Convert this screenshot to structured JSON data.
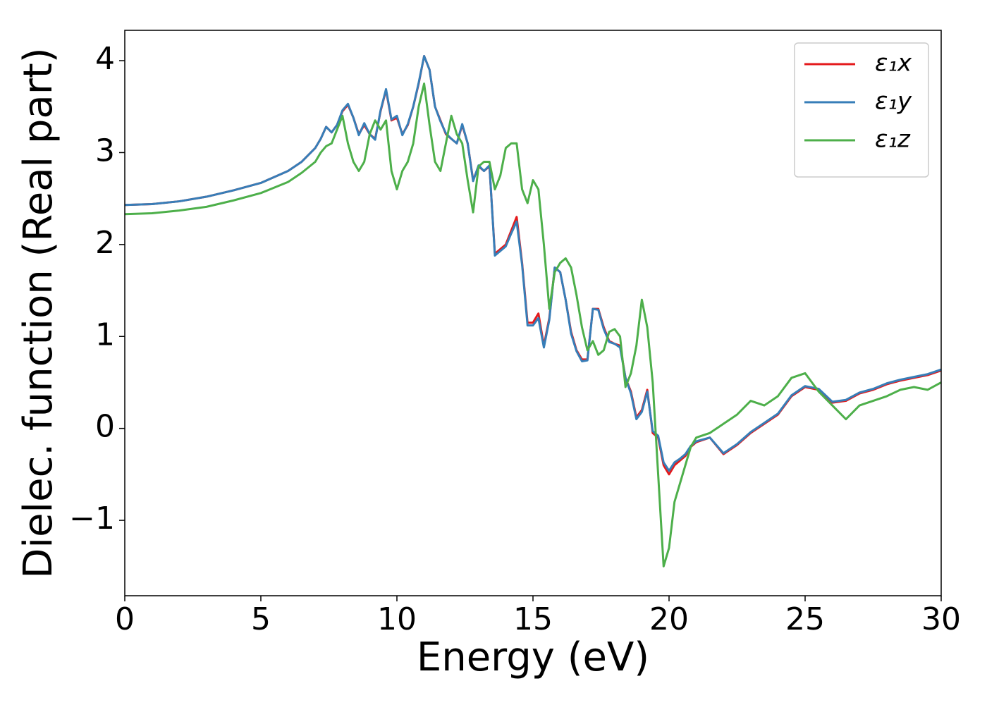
{
  "chart_data": {
    "type": "line",
    "xlabel": "Energy (eV)",
    "ylabel": "Dielec. function (Real part)",
    "xlim": [
      0,
      30
    ],
    "ylim": [
      -1.82,
      4.33
    ],
    "xticks": [
      0,
      5,
      10,
      15,
      20,
      25,
      30
    ],
    "yticks": [
      {
        "value": -1,
        "label": "−1"
      },
      0,
      1,
      2,
      3,
      4
    ],
    "grid": false,
    "legend": "upper right",
    "x": [
      0,
      1,
      2,
      3,
      4,
      5,
      6,
      6.5,
      7,
      7.2,
      7.4,
      7.6,
      7.8,
      8,
      8.2,
      8.4,
      8.6,
      8.8,
      9,
      9.2,
      9.4,
      9.6,
      9.8,
      10,
      10.2,
      10.4,
      10.6,
      10.8,
      11,
      11.2,
      11.4,
      11.6,
      11.8,
      12,
      12.2,
      12.4,
      12.6,
      12.8,
      13,
      13.2,
      13.4,
      13.6,
      13.8,
      14,
      14.2,
      14.4,
      14.6,
      14.8,
      15,
      15.2,
      15.4,
      15.6,
      15.8,
      16,
      16.2,
      16.4,
      16.6,
      16.8,
      17,
      17.2,
      17.4,
      17.6,
      17.8,
      18,
      18.2,
      18.4,
      18.6,
      18.8,
      19,
      19.2,
      19.4,
      19.6,
      19.8,
      20,
      20.2,
      20.4,
      20.6,
      20.8,
      21,
      21.5,
      22,
      22.5,
      23,
      23.5,
      24,
      24.5,
      25,
      25.5,
      26,
      26.5,
      27,
      27.5,
      28,
      28.5,
      29,
      29.5,
      30
    ],
    "series": [
      {
        "name": "ε₁x",
        "color": "#e41a1c",
        "values": [
          2.43,
          2.44,
          2.47,
          2.52,
          2.59,
          2.67,
          2.8,
          2.9,
          3.05,
          3.15,
          3.28,
          3.22,
          3.3,
          3.45,
          3.52,
          3.38,
          3.2,
          3.3,
          3.2,
          3.15,
          3.45,
          3.68,
          3.35,
          3.38,
          3.2,
          3.3,
          3.5,
          3.75,
          4.05,
          3.9,
          3.5,
          3.35,
          3.2,
          3.15,
          3.1,
          3.3,
          3.1,
          2.7,
          2.85,
          2.8,
          2.85,
          1.9,
          1.95,
          2.0,
          2.15,
          2.3,
          1.8,
          1.15,
          1.15,
          1.25,
          0.9,
          1.2,
          1.75,
          1.7,
          1.4,
          1.05,
          0.85,
          0.75,
          0.75,
          1.3,
          1.3,
          1.1,
          0.95,
          0.92,
          0.9,
          0.55,
          0.4,
          0.12,
          0.2,
          0.42,
          -0.05,
          -0.1,
          -0.4,
          -0.5,
          -0.4,
          -0.35,
          -0.3,
          -0.2,
          -0.15,
          -0.1,
          -0.28,
          -0.18,
          -0.05,
          0.05,
          0.15,
          0.35,
          0.45,
          0.42,
          0.28,
          0.3,
          0.38,
          0.42,
          0.48,
          0.52,
          0.55,
          0.58,
          0.63
        ]
      },
      {
        "name": "ε₁y",
        "color": "#377eb8",
        "values": [
          2.43,
          2.44,
          2.47,
          2.52,
          2.59,
          2.67,
          2.8,
          2.9,
          3.05,
          3.15,
          3.28,
          3.22,
          3.3,
          3.46,
          3.53,
          3.38,
          3.19,
          3.32,
          3.2,
          3.14,
          3.46,
          3.69,
          3.36,
          3.4,
          3.19,
          3.31,
          3.5,
          3.76,
          4.05,
          3.9,
          3.5,
          3.34,
          3.21,
          3.15,
          3.1,
          3.31,
          3.1,
          2.69,
          2.86,
          2.8,
          2.86,
          1.88,
          1.93,
          1.98,
          2.12,
          2.25,
          1.78,
          1.12,
          1.12,
          1.2,
          0.88,
          1.18,
          1.75,
          1.7,
          1.4,
          1.03,
          0.84,
          0.73,
          0.74,
          1.3,
          1.29,
          1.08,
          0.94,
          0.92,
          0.88,
          0.55,
          0.38,
          0.1,
          0.18,
          0.4,
          -0.03,
          -0.08,
          -0.37,
          -0.46,
          -0.37,
          -0.33,
          -0.28,
          -0.19,
          -0.14,
          -0.1,
          -0.27,
          -0.17,
          -0.04,
          0.06,
          0.16,
          0.36,
          0.46,
          0.43,
          0.29,
          0.31,
          0.39,
          0.43,
          0.49,
          0.53,
          0.56,
          0.59,
          0.64
        ]
      },
      {
        "name": "ε₁z",
        "color": "#4daf4a",
        "values": [
          2.33,
          2.34,
          2.37,
          2.41,
          2.48,
          2.56,
          2.68,
          2.78,
          2.9,
          3.0,
          3.07,
          3.1,
          3.25,
          3.4,
          3.1,
          2.9,
          2.8,
          2.9,
          3.2,
          3.35,
          3.25,
          3.35,
          2.8,
          2.6,
          2.8,
          2.9,
          3.1,
          3.5,
          3.75,
          3.3,
          2.9,
          2.8,
          3.1,
          3.4,
          3.2,
          3.1,
          2.7,
          2.35,
          2.85,
          2.9,
          2.9,
          2.6,
          2.75,
          3.05,
          3.1,
          3.1,
          2.6,
          2.45,
          2.7,
          2.6,
          2.0,
          1.3,
          1.7,
          1.8,
          1.85,
          1.75,
          1.45,
          1.1,
          0.85,
          0.95,
          0.8,
          0.85,
          1.05,
          1.08,
          1.0,
          0.45,
          0.6,
          0.9,
          1.4,
          1.1,
          0.5,
          -0.5,
          -1.5,
          -1.3,
          -0.8,
          -0.6,
          -0.4,
          -0.2,
          -0.1,
          -0.05,
          0.05,
          0.15,
          0.3,
          0.25,
          0.35,
          0.55,
          0.6,
          0.4,
          0.25,
          0.1,
          0.25,
          0.3,
          0.35,
          0.42,
          0.45,
          0.42,
          0.5
        ]
      }
    ]
  }
}
